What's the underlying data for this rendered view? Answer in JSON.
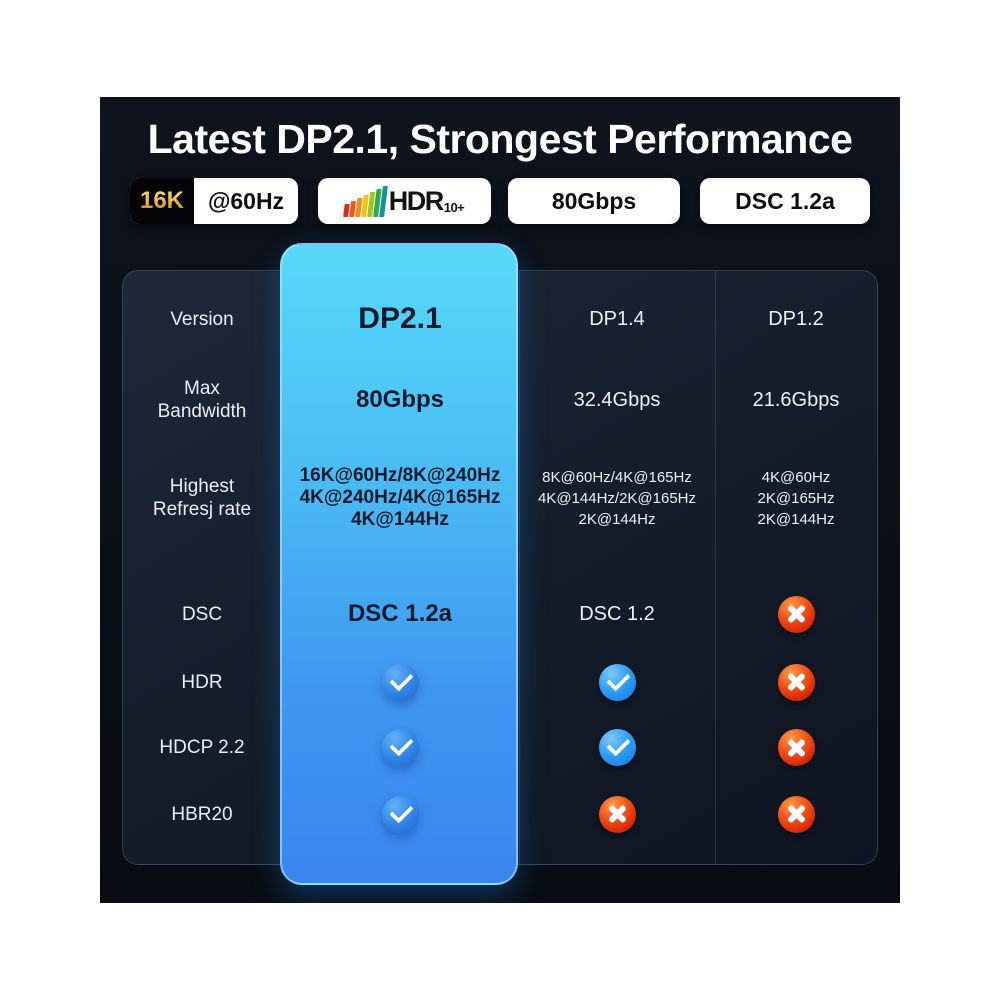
{
  "header": {
    "title": "Latest DP2.1, Strongest Performance",
    "badges": {
      "resolution": {
        "highlight": "16K",
        "rate": "@60Hz"
      },
      "hdr": {
        "label": "HDR",
        "suffix": "10+"
      },
      "bandwidth": {
        "label": "80Gbps"
      },
      "dsc": {
        "label": "DSC 1.2a"
      }
    }
  },
  "table": {
    "columns": [
      "Version",
      "DP2.1",
      "DP1.4",
      "DP1.2"
    ],
    "rows": [
      {
        "label": "Max\nBandwidth",
        "dp21": "80Gbps",
        "dp14": "32.4Gbps",
        "dp12": "21.6Gbps"
      },
      {
        "label": "Highest\nRefresj rate",
        "dp21": "16K@60Hz/8K@240Hz\n4K@240Hz/4K@165Hz\n4K@144Hz",
        "dp14": "8K@60Hz/4K@165Hz\n4K@144Hz/2K@165Hz\n2K@144Hz",
        "dp12": "4K@60Hz\n2K@165Hz\n2K@144Hz"
      },
      {
        "label": "DSC",
        "dp21": "DSC 1.2a",
        "dp14": "DSC 1.2",
        "dp12": "cross"
      },
      {
        "label": "HDR",
        "dp21": "check",
        "dp14": "check",
        "dp12": "cross"
      },
      {
        "label": "HDCP 2.2",
        "dp21": "check",
        "dp14": "check",
        "dp12": "cross"
      },
      {
        "label": "HBR20",
        "dp21": "check",
        "dp14": "cross",
        "dp12": "cross"
      }
    ]
  },
  "icons": {
    "check": "✔",
    "cross": "✖"
  },
  "colors": {
    "panel_bg": "#0c1018",
    "accent_top": "#57d8f7",
    "accent_bottom": "#3a85ee",
    "check_blue": "#2e9df4",
    "cross_red": "#e2330e",
    "gold": "#e9b54d"
  },
  "chart_data": {
    "type": "table",
    "title": "Latest DP2.1, Strongest Performance",
    "columns": [
      "Version",
      "DP2.1",
      "DP1.4",
      "DP1.2"
    ],
    "rows": [
      [
        "Max Bandwidth",
        "80Gbps",
        "32.4Gbps",
        "21.6Gbps"
      ],
      [
        "Highest Refresj rate",
        "16K@60Hz/8K@240Hz 4K@240Hz/4K@165Hz 4K@144Hz",
        "8K@60Hz/4K@165Hz 4K@144Hz/2K@165Hz 2K@144Hz",
        "4K@60Hz 2K@165Hz 2K@144Hz"
      ],
      [
        "DSC",
        "DSC 1.2a",
        "DSC 1.2",
        "no"
      ],
      [
        "HDR",
        "yes",
        "yes",
        "no"
      ],
      [
        "HDCP 2.2",
        "yes",
        "yes",
        "no"
      ],
      [
        "HBR20",
        "yes",
        "no",
        "no"
      ]
    ],
    "highlighted_column": "DP2.1",
    "legend_badges": [
      "16K @60Hz",
      "HDR10+",
      "80Gbps",
      "DSC 1.2a"
    ]
  }
}
